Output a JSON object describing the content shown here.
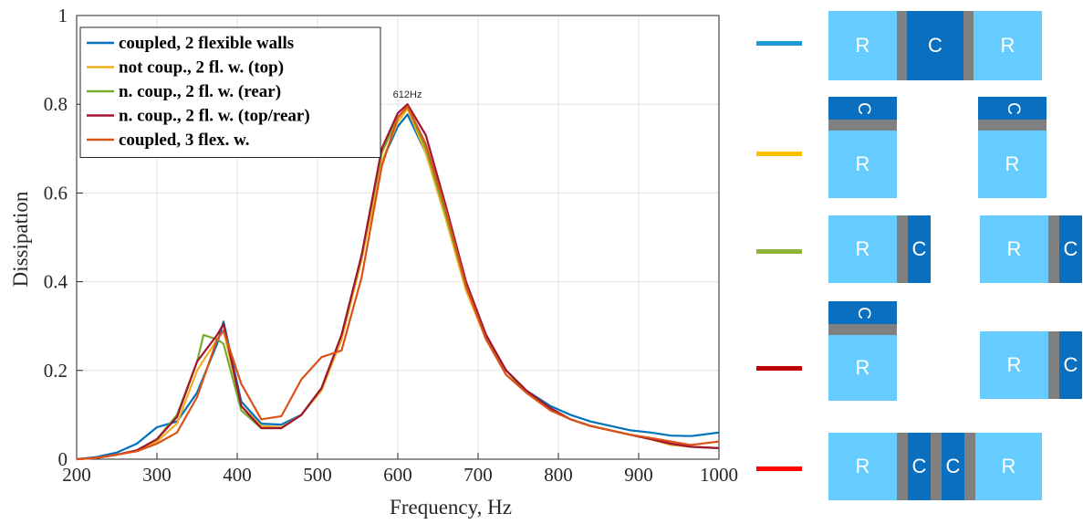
{
  "chart_data": {
    "type": "line",
    "xlabel": "Frequency, Hz",
    "ylabel": "Dissipation",
    "xlim": [
      200,
      1000
    ],
    "ylim": [
      0,
      1
    ],
    "xticks": [
      "200",
      "300",
      "400",
      "500",
      "600",
      "700",
      "800",
      "900",
      "1000"
    ],
    "yticks": [
      "0",
      "0.2",
      "0.4",
      "0.6",
      "0.8",
      "1"
    ],
    "grid": true,
    "legend_position": "top-left",
    "annotation": {
      "text": "612Hz",
      "x": 612,
      "y": 0.8
    },
    "series": [
      {
        "name": "coupled, 2 flexible walls",
        "color": "#0072bd",
        "x": [
          200,
          225,
          250,
          275,
          300,
          325,
          350,
          375,
          383,
          405,
          430,
          455,
          480,
          505,
          530,
          555,
          580,
          600,
          612,
          635,
          660,
          685,
          710,
          735,
          760,
          790,
          815,
          840,
          865,
          890,
          915,
          940,
          965,
          1000
        ],
        "y": [
          0,
          0.005,
          0.015,
          0.035,
          0.072,
          0.085,
          0.15,
          0.26,
          0.31,
          0.13,
          0.08,
          0.078,
          0.1,
          0.16,
          0.28,
          0.46,
          0.67,
          0.75,
          0.777,
          0.69,
          0.55,
          0.39,
          0.27,
          0.2,
          0.155,
          0.12,
          0.1,
          0.085,
          0.075,
          0.065,
          0.06,
          0.053,
          0.052,
          0.06
        ]
      },
      {
        "name": "not coup., 2 fl. w. (top)",
        "color": "#edb120",
        "x": [
          200,
          225,
          250,
          275,
          300,
          325,
          350,
          375,
          383,
          405,
          430,
          455,
          480,
          505,
          530,
          555,
          580,
          600,
          612,
          635,
          660,
          685,
          710,
          735,
          760,
          790,
          815,
          840,
          865,
          890,
          915,
          940,
          965,
          1000
        ],
        "y": [
          0,
          0.003,
          0.01,
          0.02,
          0.04,
          0.08,
          0.2,
          0.27,
          0.29,
          0.12,
          0.075,
          0.072,
          0.1,
          0.155,
          0.27,
          0.45,
          0.67,
          0.76,
          0.79,
          0.69,
          0.54,
          0.38,
          0.27,
          0.19,
          0.15,
          0.11,
          0.09,
          0.075,
          0.065,
          0.055,
          0.045,
          0.032,
          0.028,
          0.025
        ]
      },
      {
        "name": "n. coup., 2 fl. w. (rear)",
        "color": "#77ac30",
        "x": [
          200,
          225,
          250,
          275,
          300,
          325,
          350,
          358,
          375,
          383,
          405,
          430,
          455,
          480,
          505,
          530,
          555,
          580,
          600,
          612,
          635,
          660,
          685,
          710,
          735,
          760,
          790,
          815,
          840,
          865,
          890,
          915,
          940,
          965,
          1000
        ],
        "y": [
          0,
          0.003,
          0.01,
          0.02,
          0.045,
          0.1,
          0.22,
          0.28,
          0.27,
          0.26,
          0.11,
          0.07,
          0.07,
          0.1,
          0.16,
          0.28,
          0.46,
          0.69,
          0.77,
          0.795,
          0.7,
          0.55,
          0.39,
          0.27,
          0.2,
          0.15,
          0.115,
          0.09,
          0.075,
          0.065,
          0.055,
          0.045,
          0.035,
          0.028,
          0.025
        ]
      },
      {
        "name": "n. coup., 2 fl. w. (top/rear)",
        "color": "#a2142f",
        "x": [
          200,
          225,
          250,
          275,
          300,
          325,
          350,
          375,
          383,
          405,
          430,
          455,
          480,
          505,
          530,
          555,
          580,
          600,
          612,
          635,
          660,
          685,
          710,
          735,
          760,
          790,
          815,
          840,
          865,
          890,
          915,
          940,
          965,
          1000
        ],
        "y": [
          0,
          0.003,
          0.01,
          0.02,
          0.045,
          0.095,
          0.22,
          0.28,
          0.305,
          0.12,
          0.07,
          0.07,
          0.1,
          0.16,
          0.28,
          0.46,
          0.7,
          0.78,
          0.8,
          0.73,
          0.57,
          0.4,
          0.28,
          0.2,
          0.155,
          0.115,
          0.09,
          0.075,
          0.065,
          0.055,
          0.045,
          0.035,
          0.028,
          0.025
        ]
      },
      {
        "name": "coupled, 3 flex. w.",
        "color": "#d95319",
        "x": [
          200,
          225,
          250,
          275,
          300,
          325,
          350,
          375,
          383,
          405,
          430,
          455,
          480,
          505,
          530,
          555,
          580,
          600,
          612,
          635,
          660,
          685,
          710,
          735,
          760,
          790,
          815,
          840,
          865,
          890,
          915,
          940,
          965,
          1000
        ],
        "y": [
          0,
          0.003,
          0.01,
          0.018,
          0.035,
          0.06,
          0.14,
          0.27,
          0.29,
          0.17,
          0.09,
          0.097,
          0.18,
          0.23,
          0.245,
          0.41,
          0.66,
          0.77,
          0.795,
          0.71,
          0.56,
          0.39,
          0.27,
          0.19,
          0.15,
          0.11,
          0.09,
          0.075,
          0.065,
          0.055,
          0.048,
          0.04,
          0.032,
          0.04
        ]
      }
    ]
  },
  "configurations": [
    {
      "color": "#1f98d8",
      "blocks": [
        "R",
        "C",
        "R"
      ]
    },
    {
      "color": "#ffc000",
      "blocks": [
        "C",
        "R",
        "C",
        "R"
      ]
    },
    {
      "color": "#8db33a",
      "blocks": [
        "R",
        "C",
        "R",
        "C"
      ]
    },
    {
      "color": "#c00000",
      "blocks": [
        "C",
        "R",
        "R",
        "C"
      ]
    },
    {
      "color": "#ff0000",
      "blocks": [
        "R",
        "C",
        "C",
        "R"
      ]
    }
  ]
}
